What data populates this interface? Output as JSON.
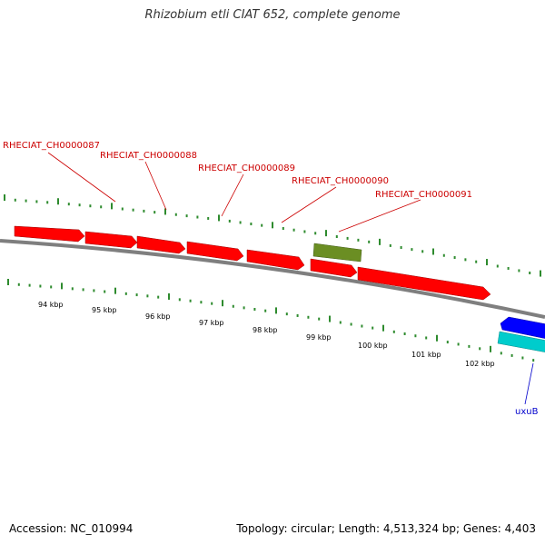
{
  "title": "Rhizobium etli CIAT 652, complete genome",
  "footer": {
    "accession": "Accession: NC_010994",
    "summary": "Topology: circular; Length: 4,513,324 bp; Genes: 4,403"
  },
  "colors": {
    "backbone": "#7f7f7f",
    "tick": "#2e8b2e",
    "gene_forward": "#ff0000",
    "gene_other": "#6b8e23",
    "gene_reverse": "#0000ff",
    "gene_reverse_alt": "#00cccc",
    "label_red": "#cc0000",
    "label_blue": "#0000cc"
  },
  "gene_labels": [
    {
      "name": "RHECIAT_CH0000087"
    },
    {
      "name": "RHECIAT_CH0000088"
    },
    {
      "name": "RHECIAT_CH0000089"
    },
    {
      "name": "RHECIAT_CH0000090"
    },
    {
      "name": "RHECIAT_CH0000091"
    },
    {
      "name": "uxuB"
    }
  ],
  "scale_labels": [
    "94 kbp",
    "95 kbp",
    "96 kbp",
    "97 kbp",
    "98 kbp",
    "99 kbp",
    "100 kbp",
    "101 kbp",
    "102 kbp"
  ]
}
